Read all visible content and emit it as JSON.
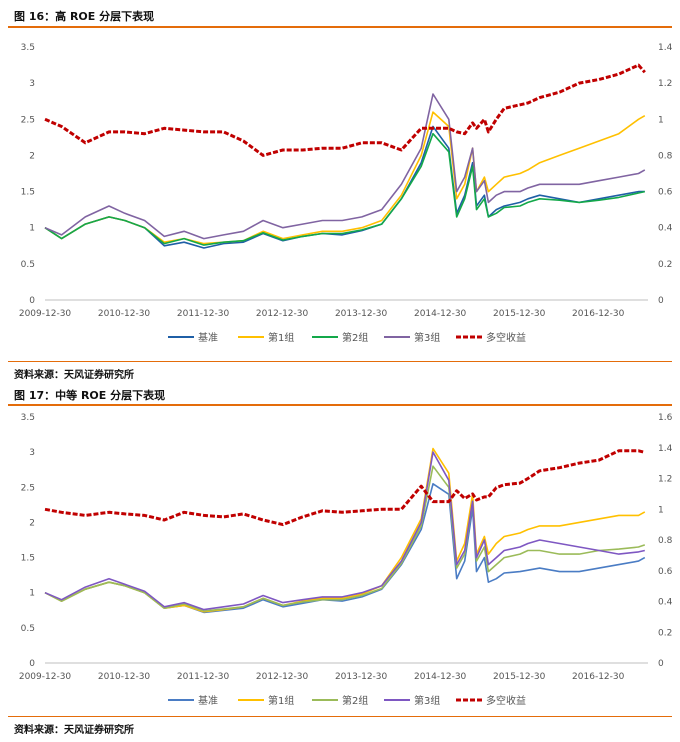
{
  "charts": [
    {
      "title": "图 16：高 ROE 分层下表现",
      "source": "资料来源：天风证券研究所",
      "legend": [
        "基准",
        "第1组",
        "第2组",
        "第3组",
        "多空收益"
      ]
    },
    {
      "title": "图 17：中等 ROE 分层下表现",
      "source": "资料来源：天风证券研究所",
      "legend": [
        "基准",
        "第1组",
        "第2组",
        "第3组",
        "多空收益"
      ]
    }
  ],
  "chart_data": [
    {
      "type": "line",
      "title": "图 16：高 ROE 分层下表现",
      "x_ticks": [
        "2009-12-30",
        "2010-12-30",
        "2011-12-30",
        "2012-12-30",
        "2013-12-30",
        "2014-12-30",
        "2015-12-30",
        "2016-12-30"
      ],
      "x": [
        2009.99,
        2010.2,
        2010.5,
        2010.8,
        2011.0,
        2011.25,
        2011.5,
        2011.75,
        2012.0,
        2012.25,
        2012.5,
        2012.75,
        2013.0,
        2013.25,
        2013.5,
        2013.75,
        2014.0,
        2014.25,
        2014.5,
        2014.75,
        2014.9,
        2015.1,
        2015.2,
        2015.3,
        2015.4,
        2015.45,
        2015.55,
        2015.6,
        2015.7,
        2015.8,
        2016.0,
        2016.1,
        2016.25,
        2016.5,
        2016.75,
        2017.0,
        2017.25,
        2017.5,
        2017.58
      ],
      "y_left": {
        "range": [
          0,
          3.5
        ],
        "ticks": [
          "0",
          "0.5",
          "1",
          "1.5",
          "2",
          "2.5",
          "3",
          "3.5"
        ]
      },
      "y_right": {
        "range": [
          0,
          1.4
        ],
        "ticks": [
          "0",
          "0.2",
          "0.4",
          "0.6",
          "0.8",
          "1",
          "1.2",
          "1.4"
        ]
      },
      "series": [
        {
          "name": "基准",
          "axis": "left",
          "color": "#1f5fa6",
          "dash": "solid",
          "values": [
            1.0,
            0.85,
            1.05,
            1.15,
            1.1,
            1.0,
            0.75,
            0.8,
            0.72,
            0.78,
            0.8,
            0.92,
            0.82,
            0.88,
            0.92,
            0.9,
            0.96,
            1.05,
            1.4,
            1.9,
            2.4,
            2.1,
            1.2,
            1.45,
            1.9,
            1.3,
            1.45,
            1.15,
            1.25,
            1.3,
            1.35,
            1.4,
            1.45,
            1.4,
            1.35,
            1.4,
            1.45,
            1.5,
            1.5
          ]
        },
        {
          "name": "第1组",
          "axis": "left",
          "color": "#ffc000",
          "dash": "solid",
          "values": [
            1.0,
            0.85,
            1.05,
            1.15,
            1.1,
            1.0,
            0.8,
            0.85,
            0.78,
            0.8,
            0.82,
            0.95,
            0.85,
            0.9,
            0.95,
            0.95,
            1.0,
            1.1,
            1.45,
            2.0,
            2.6,
            2.4,
            1.4,
            1.6,
            2.1,
            1.5,
            1.7,
            1.5,
            1.6,
            1.7,
            1.75,
            1.8,
            1.9,
            2.0,
            2.1,
            2.2,
            2.3,
            2.5,
            2.55
          ]
        },
        {
          "name": "第2组",
          "axis": "left",
          "color": "#13a84a",
          "dash": "solid",
          "values": [
            1.0,
            0.85,
            1.05,
            1.15,
            1.1,
            1.0,
            0.78,
            0.85,
            0.76,
            0.8,
            0.82,
            0.93,
            0.83,
            0.88,
            0.92,
            0.92,
            0.97,
            1.05,
            1.4,
            1.85,
            2.3,
            2.05,
            1.15,
            1.4,
            1.85,
            1.25,
            1.4,
            1.15,
            1.2,
            1.28,
            1.3,
            1.35,
            1.4,
            1.38,
            1.35,
            1.38,
            1.42,
            1.48,
            1.5
          ]
        },
        {
          "name": "第3组",
          "axis": "left",
          "color": "#8064a2",
          "dash": "solid",
          "values": [
            1.0,
            0.9,
            1.15,
            1.3,
            1.2,
            1.1,
            0.88,
            0.95,
            0.85,
            0.9,
            0.95,
            1.1,
            1.0,
            1.05,
            1.1,
            1.1,
            1.15,
            1.25,
            1.6,
            2.1,
            2.85,
            2.5,
            1.5,
            1.7,
            2.1,
            1.5,
            1.65,
            1.35,
            1.45,
            1.5,
            1.5,
            1.55,
            1.6,
            1.6,
            1.6,
            1.65,
            1.7,
            1.75,
            1.8
          ]
        },
        {
          "name": "多空收益",
          "axis": "right",
          "color": "#c00000",
          "dash": "dash",
          "width": 3,
          "values": [
            1.0,
            0.96,
            0.87,
            0.93,
            0.93,
            0.92,
            0.95,
            0.94,
            0.93,
            0.93,
            0.88,
            0.8,
            0.83,
            0.83,
            0.84,
            0.84,
            0.87,
            0.87,
            0.83,
            0.95,
            0.95,
            0.95,
            0.93,
            0.92,
            0.98,
            0.95,
            1.0,
            0.93,
            1.0,
            1.06,
            1.08,
            1.09,
            1.12,
            1.15,
            1.2,
            1.22,
            1.25,
            1.3,
            1.26
          ]
        }
      ]
    },
    {
      "type": "line",
      "title": "图 17：中等 ROE 分层下表现",
      "x_ticks": [
        "2009-12-30",
        "2010-12-30",
        "2011-12-30",
        "2012-12-30",
        "2013-12-30",
        "2014-12-30",
        "2015-12-30",
        "2016-12-30"
      ],
      "x": [
        2009.99,
        2010.2,
        2010.5,
        2010.8,
        2011.0,
        2011.25,
        2011.5,
        2011.75,
        2012.0,
        2012.25,
        2012.5,
        2012.75,
        2013.0,
        2013.25,
        2013.5,
        2013.75,
        2014.0,
        2014.25,
        2014.5,
        2014.75,
        2014.9,
        2015.1,
        2015.2,
        2015.3,
        2015.4,
        2015.45,
        2015.55,
        2015.6,
        2015.7,
        2015.8,
        2016.0,
        2016.1,
        2016.25,
        2016.5,
        2016.75,
        2017.0,
        2017.25,
        2017.5,
        2017.58
      ],
      "y_left": {
        "range": [
          0,
          3.5
        ],
        "ticks": [
          "0",
          "0.5",
          "1",
          "1.5",
          "2",
          "2.5",
          "3",
          "3.5"
        ]
      },
      "y_right": {
        "range": [
          0,
          1.6
        ],
        "ticks": [
          "0",
          "0.2",
          "0.4",
          "0.6",
          "0.8",
          "1",
          "1.2",
          "1.4",
          "1.6"
        ]
      },
      "series": [
        {
          "name": "基准",
          "axis": "left",
          "color": "#4a7cc4",
          "dash": "solid",
          "values": [
            1.0,
            0.88,
            1.05,
            1.15,
            1.1,
            1.0,
            0.78,
            0.82,
            0.72,
            0.75,
            0.78,
            0.9,
            0.8,
            0.85,
            0.9,
            0.88,
            0.94,
            1.05,
            1.4,
            1.9,
            2.55,
            2.4,
            1.2,
            1.45,
            2.2,
            1.3,
            1.5,
            1.15,
            1.2,
            1.28,
            1.3,
            1.32,
            1.35,
            1.3,
            1.3,
            1.35,
            1.4,
            1.45,
            1.5
          ]
        },
        {
          "name": "第1组",
          "axis": "left",
          "color": "#ffc000",
          "dash": "solid",
          "values": [
            1.0,
            0.88,
            1.05,
            1.15,
            1.1,
            1.0,
            0.78,
            0.82,
            0.73,
            0.76,
            0.8,
            0.92,
            0.82,
            0.88,
            0.92,
            0.92,
            0.98,
            1.1,
            1.5,
            2.05,
            3.05,
            2.7,
            1.45,
            1.7,
            2.4,
            1.55,
            1.8,
            1.55,
            1.7,
            1.8,
            1.85,
            1.9,
            1.95,
            1.95,
            2.0,
            2.05,
            2.1,
            2.1,
            2.15
          ]
        },
        {
          "name": "第2组",
          "axis": "left",
          "color": "#9bbb59",
          "dash": "solid",
          "values": [
            1.0,
            0.88,
            1.05,
            1.15,
            1.1,
            1.0,
            0.78,
            0.84,
            0.74,
            0.77,
            0.8,
            0.92,
            0.82,
            0.87,
            0.9,
            0.9,
            0.96,
            1.06,
            1.42,
            1.95,
            2.8,
            2.5,
            1.35,
            1.55,
            2.3,
            1.45,
            1.65,
            1.3,
            1.4,
            1.5,
            1.55,
            1.6,
            1.6,
            1.55,
            1.55,
            1.6,
            1.62,
            1.65,
            1.68
          ]
        },
        {
          "name": "第3组",
          "axis": "left",
          "color": "#7e57c2",
          "dash": "solid",
          "values": [
            1.0,
            0.9,
            1.08,
            1.2,
            1.12,
            1.02,
            0.8,
            0.86,
            0.76,
            0.8,
            0.84,
            0.96,
            0.86,
            0.9,
            0.94,
            0.94,
            1.0,
            1.1,
            1.45,
            2.0,
            3.0,
            2.6,
            1.4,
            1.6,
            2.3,
            1.5,
            1.75,
            1.4,
            1.5,
            1.6,
            1.65,
            1.7,
            1.75,
            1.7,
            1.65,
            1.6,
            1.55,
            1.58,
            1.6
          ]
        },
        {
          "name": "多空收益",
          "axis": "right",
          "color": "#c00000",
          "dash": "dash",
          "width": 3,
          "values": [
            1.0,
            0.98,
            0.96,
            0.98,
            0.97,
            0.96,
            0.93,
            0.98,
            0.96,
            0.95,
            0.97,
            0.93,
            0.9,
            0.95,
            0.99,
            0.98,
            0.99,
            1.0,
            1.0,
            1.15,
            1.05,
            1.05,
            1.12,
            1.07,
            1.1,
            1.06,
            1.08,
            1.08,
            1.14,
            1.16,
            1.17,
            1.2,
            1.25,
            1.27,
            1.3,
            1.32,
            1.38,
            1.38,
            1.37
          ]
        }
      ]
    }
  ]
}
